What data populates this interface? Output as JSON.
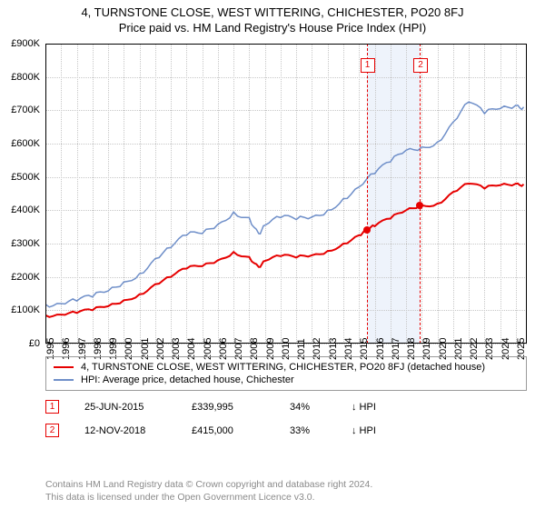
{
  "title": "4, TURNSTONE CLOSE, WEST WITTERING, CHICHESTER, PO20 8FJ",
  "subtitle": "Price paid vs. HM Land Registry's House Price Index (HPI)",
  "chart": {
    "type": "line",
    "background_color": "#ffffff",
    "grid_color": "#c7c7c7",
    "border_color": "#000000",
    "x": {
      "min": 1995,
      "max": 2025.7,
      "ticks": [
        1995,
        1996,
        1997,
        1998,
        1999,
        2000,
        2001,
        2002,
        2003,
        2004,
        2005,
        2006,
        2007,
        2008,
        2009,
        2010,
        2011,
        2012,
        2013,
        2014,
        2015,
        2016,
        2017,
        2018,
        2019,
        2020,
        2021,
        2022,
        2023,
        2024,
        2025
      ]
    },
    "y": {
      "min": 0,
      "max": 900000,
      "tick_step": 100000,
      "labels": [
        "£0",
        "£100K",
        "£200K",
        "£300K",
        "£400K",
        "£500K",
        "£600K",
        "£700K",
        "£800K",
        "£900K"
      ]
    },
    "shaded": {
      "from": 2015.48,
      "to": 2018.87,
      "color": "#eef3fb"
    },
    "markers": [
      {
        "id": "1",
        "x": 2015.48,
        "y": 339995
      },
      {
        "id": "2",
        "x": 2018.87,
        "y": 415000
      }
    ],
    "series": [
      {
        "name": "price_paid",
        "color": "#e60000",
        "width": 2,
        "points": [
          [
            1995,
            85000
          ],
          [
            1996,
            87000
          ],
          [
            1997,
            92000
          ],
          [
            1998,
            100000
          ],
          [
            1999,
            112000
          ],
          [
            2000,
            130000
          ],
          [
            2001,
            148000
          ],
          [
            2002,
            178000
          ],
          [
            2003,
            200000
          ],
          [
            2004,
            225000
          ],
          [
            2005,
            232000
          ],
          [
            2006,
            250000
          ],
          [
            2007,
            275000
          ],
          [
            2008,
            260000
          ],
          [
            2008.6,
            230000
          ],
          [
            2009,
            248000
          ],
          [
            2010,
            262000
          ],
          [
            2011,
            258000
          ],
          [
            2012,
            265000
          ],
          [
            2013,
            278000
          ],
          [
            2014,
            300000
          ],
          [
            2015,
            325000
          ],
          [
            2015.48,
            339995
          ],
          [
            2016,
            352000
          ],
          [
            2017,
            375000
          ],
          [
            2018,
            400000
          ],
          [
            2018.87,
            415000
          ],
          [
            2019,
            415000
          ],
          [
            2020,
            420000
          ],
          [
            2021,
            455000
          ],
          [
            2022,
            480000
          ],
          [
            2023,
            465000
          ],
          [
            2024,
            475000
          ],
          [
            2025,
            480000
          ],
          [
            2025.5,
            478000
          ]
        ]
      },
      {
        "name": "hpi",
        "color": "#6f8fc9",
        "width": 1.5,
        "points": [
          [
            1995,
            118000
          ],
          [
            1996,
            120000
          ],
          [
            1997,
            128000
          ],
          [
            1998,
            140000
          ],
          [
            1999,
            158000
          ],
          [
            2000,
            185000
          ],
          [
            2001,
            210000
          ],
          [
            2002,
            255000
          ],
          [
            2003,
            288000
          ],
          [
            2004,
            325000
          ],
          [
            2005,
            330000
          ],
          [
            2006,
            358000
          ],
          [
            2007,
            395000
          ],
          [
            2008,
            378000
          ],
          [
            2008.6,
            330000
          ],
          [
            2009,
            355000
          ],
          [
            2010,
            378000
          ],
          [
            2011,
            372000
          ],
          [
            2012,
            380000
          ],
          [
            2013,
            400000
          ],
          [
            2014,
            435000
          ],
          [
            2015,
            470000
          ],
          [
            2016,
            510000
          ],
          [
            2017,
            545000
          ],
          [
            2018,
            580000
          ],
          [
            2019,
            590000
          ],
          [
            2020,
            605000
          ],
          [
            2021,
            665000
          ],
          [
            2022,
            725000
          ],
          [
            2023,
            690000
          ],
          [
            2024,
            705000
          ],
          [
            2025,
            715000
          ],
          [
            2025.5,
            710000
          ]
        ]
      }
    ]
  },
  "legend": {
    "items": [
      {
        "color": "#e60000",
        "label": "4, TURNSTONE CLOSE, WEST WITTERING, CHICHESTER, PO20 8FJ (detached house)"
      },
      {
        "color": "#6f8fc9",
        "label": "HPI: Average price, detached house, Chichester"
      }
    ]
  },
  "sales": [
    {
      "id": "1",
      "date": "25-JUN-2015",
      "price": "£339,995",
      "pct": "34%",
      "vs": "↓ HPI"
    },
    {
      "id": "2",
      "date": "12-NOV-2018",
      "price": "£415,000",
      "pct": "33%",
      "vs": "↓ HPI"
    }
  ],
  "footer": {
    "l1": "Contains HM Land Registry data © Crown copyright and database right 2024.",
    "l2": "This data is licensed under the Open Government Licence v3.0."
  }
}
